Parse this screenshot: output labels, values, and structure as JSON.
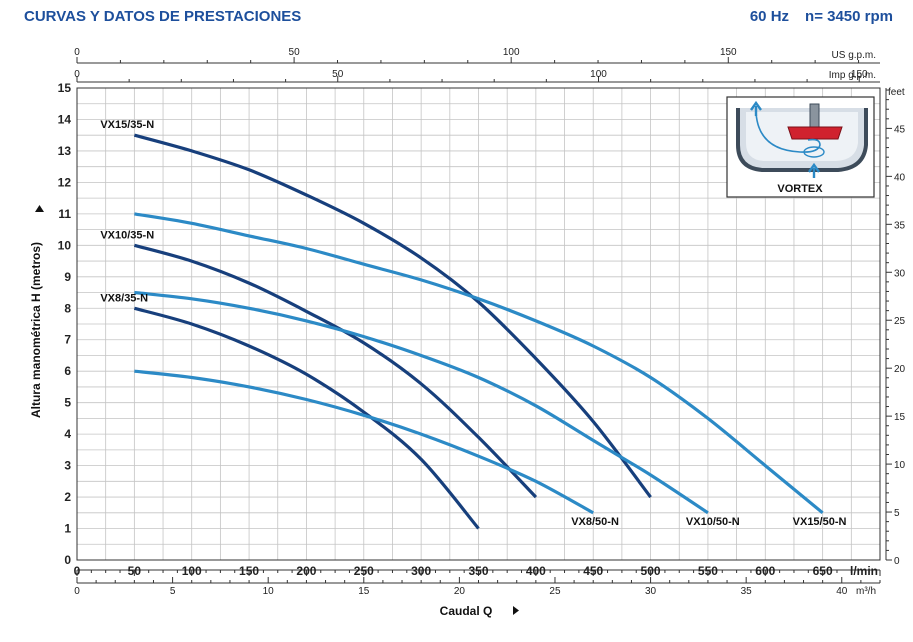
{
  "header": {
    "title": "CURVAS Y DATOS DE PRESTACIONES",
    "freq": "60 Hz",
    "speed": "n= 3450 rpm"
  },
  "inset": {
    "label": "VORTEX"
  },
  "colors": {
    "series35": "#173f7c",
    "series50": "#2c8ac6",
    "grid": "#c4c4c4",
    "title": "#1d4f9c"
  },
  "chart_data": {
    "type": "line",
    "title": "CURVAS Y DATOS DE PRESTACIONES",
    "xlabel": "Caudal Q",
    "ylabel": "Altura manométrica H (metros)",
    "xlim": [
      0,
      700
    ],
    "ylim": [
      0,
      15
    ],
    "x_unit": "l/min",
    "x_ticks": [
      0,
      50,
      100,
      150,
      200,
      250,
      300,
      350,
      400,
      450,
      500,
      550,
      600,
      650
    ],
    "y_ticks": [
      0,
      1,
      2,
      3,
      4,
      5,
      6,
      7,
      8,
      9,
      10,
      11,
      12,
      13,
      14,
      15
    ],
    "secondary_axes": {
      "m3h": {
        "unit": "m³/h",
        "ticks": [
          0,
          5,
          10,
          15,
          20,
          25,
          30,
          35,
          40
        ]
      },
      "us_gpm": {
        "unit": "US g.p.m.",
        "ticks": [
          0,
          50,
          100,
          150
        ]
      },
      "imp_gpm": {
        "unit": "Imp g.p.m.",
        "ticks": [
          0,
          50,
          100,
          150
        ]
      },
      "feet": {
        "unit": "feet",
        "ticks": [
          0,
          5,
          10,
          15,
          20,
          25,
          30,
          35,
          40,
          45
        ]
      }
    },
    "series": [
      {
        "name": "VX15/35-N",
        "style": "dark",
        "x": [
          50,
          100,
          150,
          200,
          250,
          300,
          350,
          400,
          450,
          500
        ],
        "y": [
          13.5,
          13,
          12.4,
          11.6,
          10.7,
          9.6,
          8.2,
          6.4,
          4.4,
          2
        ]
      },
      {
        "name": "VX10/35-N",
        "style": "dark",
        "x": [
          50,
          100,
          150,
          200,
          250,
          300,
          350,
          400
        ],
        "y": [
          10,
          9.5,
          8.8,
          7.9,
          6.9,
          5.6,
          3.9,
          2
        ]
      },
      {
        "name": "VX8/35-N",
        "style": "dark",
        "x": [
          50,
          100,
          150,
          200,
          250,
          300,
          350
        ],
        "y": [
          8,
          7.5,
          6.8,
          5.9,
          4.7,
          3.2,
          1
        ]
      },
      {
        "name": "VX15/50-N",
        "style": "light",
        "x": [
          50,
          100,
          150,
          200,
          250,
          300,
          350,
          400,
          450,
          500,
          550,
          600,
          650
        ],
        "y": [
          11,
          10.7,
          10.3,
          9.9,
          9.4,
          8.9,
          8.3,
          7.6,
          6.8,
          5.8,
          4.5,
          3,
          1.5
        ]
      },
      {
        "name": "VX10/50-N",
        "style": "light",
        "x": [
          50,
          100,
          150,
          200,
          250,
          300,
          350,
          400,
          450,
          500,
          550
        ],
        "y": [
          8.5,
          8.3,
          8,
          7.6,
          7.1,
          6.5,
          5.8,
          4.9,
          3.8,
          2.7,
          1.5
        ]
      },
      {
        "name": "VX8/50-N",
        "style": "light",
        "x": [
          50,
          100,
          150,
          200,
          250,
          300,
          350,
          400,
          450
        ],
        "y": [
          6,
          5.8,
          5.5,
          5.1,
          4.6,
          4,
          3.3,
          2.5,
          1.5
        ]
      }
    ]
  }
}
